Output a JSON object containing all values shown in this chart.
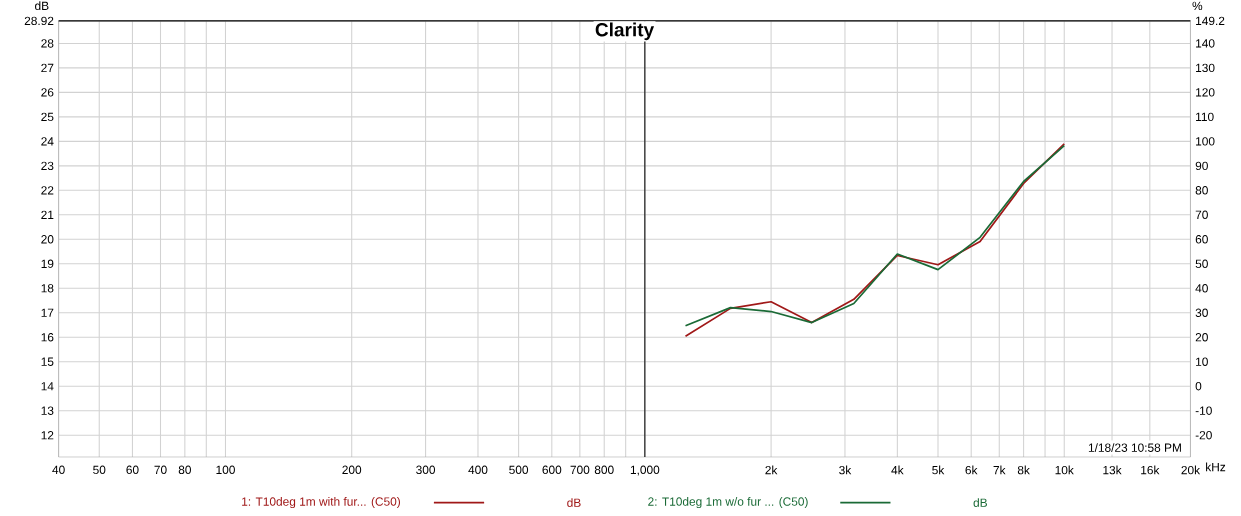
{
  "chart_data": {
    "type": "line",
    "title": "Clarity",
    "ylabel": "dB",
    "y2label": "%",
    "x": [
      1250,
      1600,
      2000,
      2500,
      3150,
      4000,
      5000,
      6300,
      8000,
      10000
    ],
    "series": [
      {
        "name": "1: T10deg 1m with fur... (C50)",
        "color": "#a01818",
        "values": [
          16.04,
          17.18,
          17.45,
          16.6,
          17.55,
          19.34,
          18.96,
          19.91,
          22.28,
          23.9
        ]
      },
      {
        "name": "2: T10deg 1m w/o fur ... (C50)",
        "color": "#1a6a36",
        "values": [
          16.47,
          17.21,
          17.05,
          16.6,
          17.38,
          19.4,
          18.76,
          20.08,
          22.36,
          23.83
        ]
      }
    ],
    "log": "x",
    "xlim": [
      40,
      20000
    ],
    "xticks": [
      40,
      50,
      60,
      70,
      80,
      {
        "value": 90,
        "label": null
      },
      100,
      200,
      300,
      400,
      500,
      600,
      700,
      800,
      {
        "value": 900,
        "label": null
      },
      {
        "value": 1000,
        "label": "1,000"
      },
      {
        "value": 2000,
        "label": "2k"
      },
      {
        "value": 3000,
        "label": "3k"
      },
      {
        "value": 4000,
        "label": "4k"
      },
      {
        "value": 5000,
        "label": "5k"
      },
      {
        "value": 6000,
        "label": "6k"
      },
      {
        "value": 7000,
        "label": "7k"
      },
      {
        "value": 8000,
        "label": "8k"
      },
      {
        "value": 9000,
        "label": null
      },
      {
        "value": 10000,
        "label": "10k"
      },
      {
        "value": 13000,
        "label": "13k"
      },
      {
        "value": 16000,
        "label": "16k"
      },
      {
        "value": 20000,
        "label": "20k"
      }
    ],
    "xlabel": "kHz",
    "ylim": [
      11.11,
      28.92
    ],
    "yticks": [
      12,
      13,
      14,
      15,
      16,
      17,
      18,
      19,
      20,
      21,
      22,
      23,
      24,
      25,
      26,
      27,
      28,
      {
        "value": 28.92,
        "label": "28.92"
      }
    ],
    "y2lim": [
      -28.9,
      149.2
    ],
    "y2ticks": [
      -20,
      -10,
      0,
      10,
      20,
      30,
      40,
      50,
      60,
      70,
      80,
      90,
      100,
      110,
      120,
      130,
      140,
      {
        "value": 149.2,
        "label": "149.2"
      }
    ],
    "ref_lines": [
      {
        "axis": "x",
        "value": 1000,
        "color": "#000000"
      }
    ],
    "annotations": [
      "1/18/23 10:58 PM",
      "dB",
      "dB"
    ],
    "grid": true,
    "legend": "bottom",
    "line_style": "solid",
    "marker": "none"
  }
}
